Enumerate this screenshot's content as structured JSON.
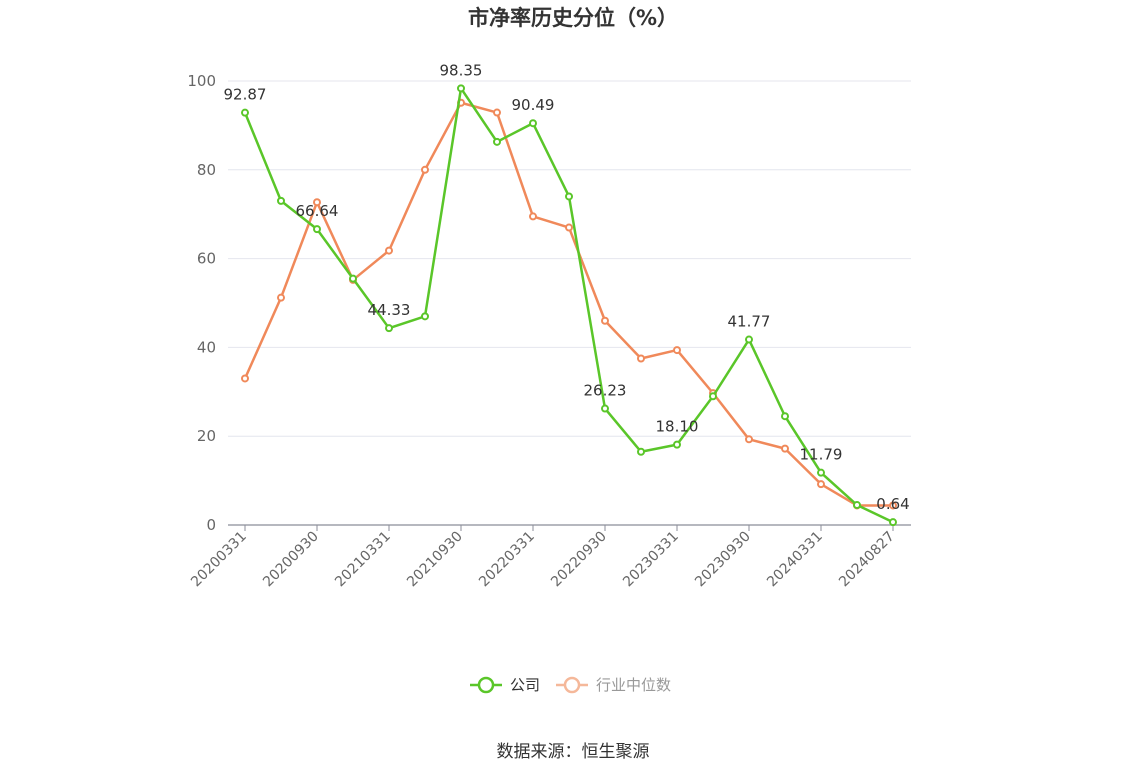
{
  "chart_data": {
    "type": "line",
    "title": "市净率历史分位（%）",
    "xlabel": "",
    "ylabel": "",
    "ylim": [
      0,
      100
    ],
    "yticks": [
      0,
      20,
      40,
      60,
      80,
      100
    ],
    "x_tick_labels": [
      "20200331",
      "20200930",
      "20210331",
      "20210930",
      "20220331",
      "20220930",
      "20230331",
      "20230930",
      "20240331",
      "20240827"
    ],
    "grid": true,
    "legend_position": "bottom",
    "x": [
      "20200331",
      "20200630",
      "20200930",
      "20201231",
      "20210331",
      "20210630",
      "20210930",
      "20211231",
      "20220331",
      "20220630",
      "20220930",
      "20221231",
      "20230331",
      "20230630",
      "20230930",
      "20231231",
      "20240331",
      "20240630",
      "20240827"
    ],
    "series": [
      {
        "name": "公司",
        "color": "#5ac629",
        "values": [
          92.87,
          73.0,
          66.64,
          55.5,
          44.33,
          47.0,
          98.35,
          86.3,
          90.49,
          74.0,
          26.23,
          16.5,
          18.1,
          29.0,
          41.77,
          24.5,
          11.79,
          4.5,
          0.64
        ],
        "data_labels": [
          {
            "index": 0,
            "text": "92.87"
          },
          {
            "index": 2,
            "text": "66.64"
          },
          {
            "index": 4,
            "text": "44.33"
          },
          {
            "index": 6,
            "text": "98.35"
          },
          {
            "index": 8,
            "text": "90.49"
          },
          {
            "index": 10,
            "text": "26.23"
          },
          {
            "index": 12,
            "text": "18.10"
          },
          {
            "index": 14,
            "text": "41.77"
          },
          {
            "index": 16,
            "text": "11.79"
          },
          {
            "index": 18,
            "text": "0.64"
          }
        ]
      },
      {
        "name": "行业中位数",
        "color": "#f0895a",
        "values": [
          33.0,
          51.2,
          72.7,
          55.2,
          61.8,
          80.0,
          95.1,
          92.9,
          69.5,
          67.0,
          46.0,
          37.5,
          39.4,
          29.7,
          19.3,
          17.2,
          9.2,
          4.4,
          4.4
        ]
      }
    ]
  },
  "source_text": "数据来源：恒生聚源"
}
